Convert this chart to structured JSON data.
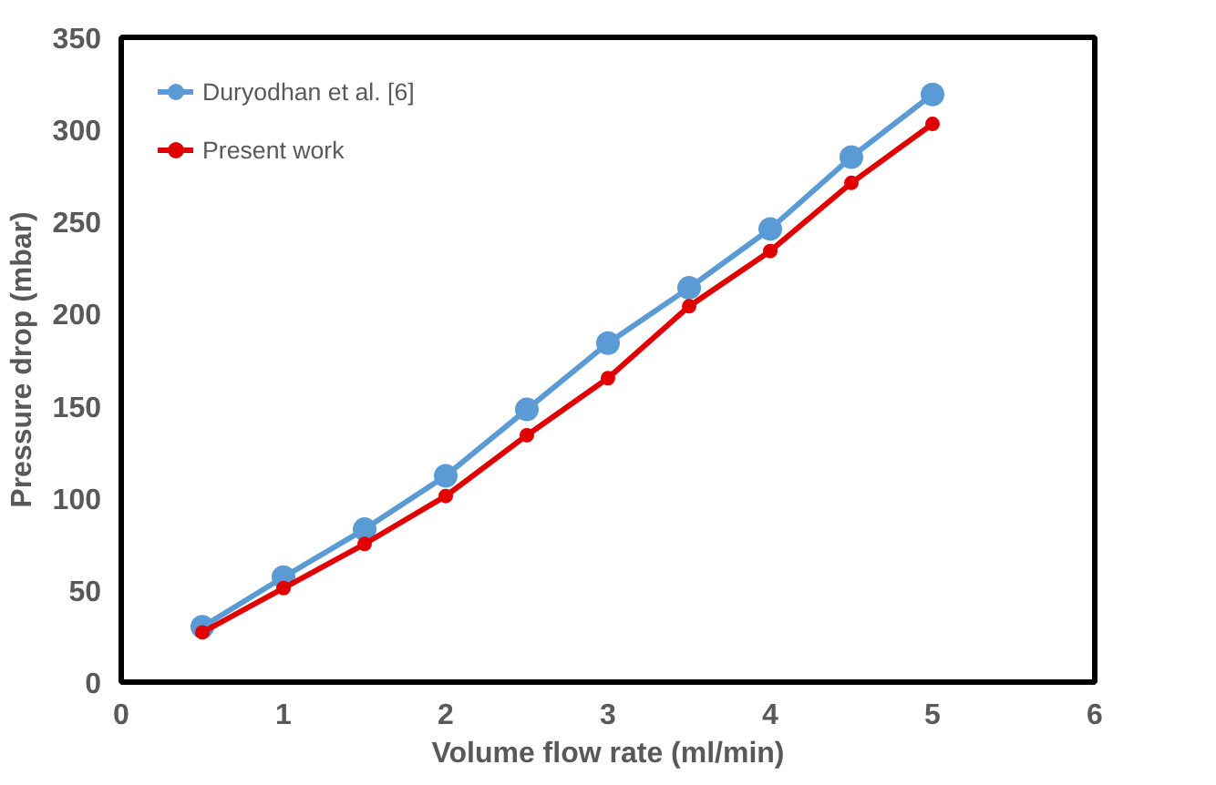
{
  "chart_data": {
    "type": "line",
    "xlabel": "Volume flow rate (ml/min)",
    "ylabel": "Pressure drop (mbar)",
    "x": [
      0.5,
      1,
      1.5,
      2,
      2.5,
      3,
      3.5,
      4,
      4.5,
      5
    ],
    "series": [
      {
        "name": "Duryodhan et al. [6]",
        "color": "#5b9bd5",
        "values": [
          30,
          57,
          83,
          112,
          148,
          184,
          214,
          246,
          285,
          319
        ]
      },
      {
        "name": "Present work",
        "color": "#e00000",
        "values": [
          27,
          51,
          75,
          101,
          134,
          165,
          204,
          234,
          271,
          303
        ]
      }
    ],
    "xlim": [
      0,
      6
    ],
    "xticks": [
      0,
      1,
      2,
      3,
      4,
      5,
      6
    ],
    "ylim": [
      0,
      350
    ],
    "yticks": [
      0,
      50,
      100,
      150,
      200,
      250,
      300,
      350
    ],
    "grid": false,
    "legend": "top left",
    "marker": "circle"
  }
}
